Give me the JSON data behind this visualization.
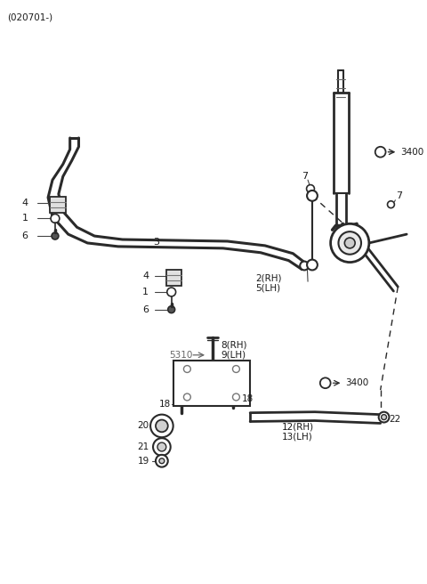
{
  "title": "(020701-)",
  "bg_color": "#ffffff",
  "lc": "#2a2a2a",
  "fig_width": 4.8,
  "fig_height": 6.56,
  "dpi": 100,
  "labels": {
    "top_label": "(020701-)",
    "part3": "3",
    "part4a": "4",
    "part1a": "1",
    "part6a": "6",
    "part4b": "4",
    "part1b": "1",
    "part6b": "6",
    "part7a": "7",
    "part7b": "7",
    "part3400a": "3400",
    "part3400b": "3400",
    "part2rh": "2(RH)",
    "part5lh": "5(LH)",
    "part8rh": "8(RH)",
    "part9lh": "9(LH)",
    "part5310": "5310",
    "part18a": "18",
    "part18b": "18",
    "part20": "20",
    "part21": "21",
    "part19": "19",
    "part12rh": "12(RH)",
    "part13lh": "13(LH)",
    "part22": "22"
  }
}
